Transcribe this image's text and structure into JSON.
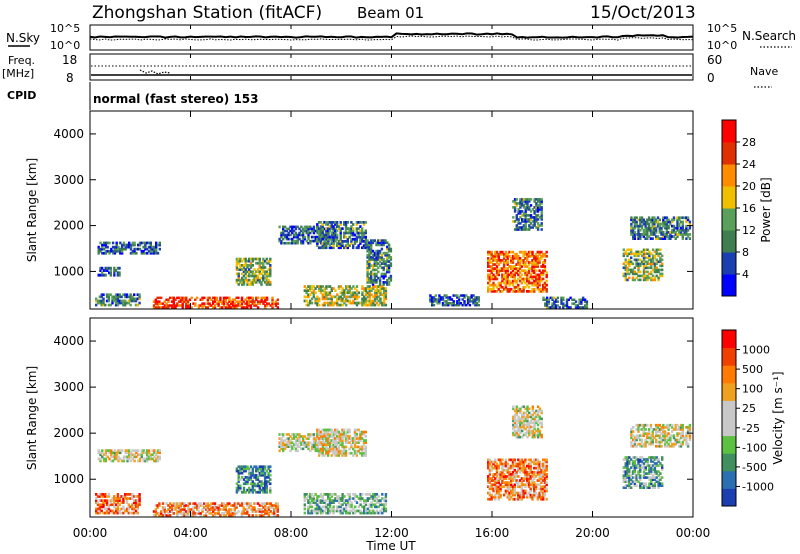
{
  "header": {
    "title": "Zhongshan Station (fitACF)",
    "beam": "Beam 01",
    "date": "15/Oct/2013"
  },
  "top_panels": {
    "nsky_label": "N.Sky",
    "nsky_ticks": [
      "10^5",
      "10^0"
    ],
    "nsearch_label": "N.Search",
    "nsearch_ticks": [
      "10^5",
      "10^0"
    ],
    "freq_label": "Freq.",
    "freq_unit": "[MHz]",
    "freq_ticks": [
      "18",
      "8"
    ],
    "nave_label": "Nave",
    "nave_ticks": [
      "60",
      "0"
    ],
    "cpid_label": "CPID",
    "cpid_value": "normal (fast stereo) 153"
  },
  "chart_data": [
    {
      "type": "heatmap",
      "name": "power",
      "ylabel": "Slant Range [km]",
      "yticks": [
        "4000",
        "3000",
        "2000",
        "1000"
      ],
      "ylim": [
        180,
        4500
      ],
      "xlim_hours": [
        0,
        24
      ],
      "colorbar_label": "Power [dB]",
      "colorbar_ticks": [
        "28",
        "24",
        "20",
        "16",
        "12",
        "8",
        "4"
      ],
      "colors": [
        "#0000ff",
        "#1b3fb0",
        "#3f7f4f",
        "#5aa05a",
        "#f0c000",
        "#ff8c00",
        "#e03000",
        "#ff0000"
      ],
      "echo_regions": [
        {
          "t": [
            0.3,
            2.8
          ],
          "r": [
            1380,
            1650
          ],
          "intensity": 0.25
        },
        {
          "t": [
            0.3,
            1.2
          ],
          "r": [
            900,
            1100
          ],
          "intensity": 0.2
        },
        {
          "t": [
            0.2,
            2.0
          ],
          "r": [
            250,
            520
          ],
          "intensity": 0.3
        },
        {
          "t": [
            2.5,
            7.5
          ],
          "r": [
            200,
            450
          ],
          "intensity": 0.85
        },
        {
          "t": [
            5.8,
            7.2
          ],
          "r": [
            700,
            1300
          ],
          "intensity": 0.45
        },
        {
          "t": [
            7.5,
            9.8
          ],
          "r": [
            1600,
            2000
          ],
          "intensity": 0.25
        },
        {
          "t": [
            9.0,
            11.0
          ],
          "r": [
            1500,
            2100
          ],
          "intensity": 0.3
        },
        {
          "t": [
            8.5,
            11.8
          ],
          "r": [
            250,
            700
          ],
          "intensity": 0.5
        },
        {
          "t": [
            11.0,
            12.0
          ],
          "r": [
            700,
            1700
          ],
          "intensity": 0.3
        },
        {
          "t": [
            13.5,
            15.5
          ],
          "r": [
            250,
            500
          ],
          "intensity": 0.2
        },
        {
          "t": [
            15.8,
            18.2
          ],
          "r": [
            550,
            1450
          ],
          "intensity": 0.75
        },
        {
          "t": [
            16.8,
            18.0
          ],
          "r": [
            1900,
            2600
          ],
          "intensity": 0.3
        },
        {
          "t": [
            18.0,
            19.8
          ],
          "r": [
            200,
            450
          ],
          "intensity": 0.3
        },
        {
          "t": [
            21.2,
            22.8
          ],
          "r": [
            800,
            1500
          ],
          "intensity": 0.45
        },
        {
          "t": [
            21.5,
            23.9
          ],
          "r": [
            1700,
            2200
          ],
          "intensity": 0.3
        }
      ]
    },
    {
      "type": "heatmap",
      "name": "velocity",
      "xlabel": "Time UT",
      "xticks": [
        "00:00",
        "04:00",
        "08:00",
        "12:00",
        "16:00",
        "20:00",
        "00:00"
      ],
      "ylabel": "Slant Range [km]",
      "yticks": [
        "4000",
        "3000",
        "2000",
        "1000"
      ],
      "ylim": [
        180,
        4500
      ],
      "xlim_hours": [
        0,
        24
      ],
      "colorbar_label": "Velocity [m s⁻¹]",
      "colorbar_ticks": [
        "1000",
        "500",
        "100",
        "25",
        "-25",
        "-100",
        "-500",
        "-1000"
      ],
      "colors": [
        "#1b3fb0",
        "#2a6fb0",
        "#3f8f5f",
        "#5cc040",
        "#c8c8c8",
        "#c8c8c8",
        "#f0a020",
        "#ff7a00",
        "#f04000",
        "#ff0000"
      ],
      "echo_regions": [
        {
          "t": [
            0.3,
            2.8
          ],
          "r": [
            1380,
            1650
          ],
          "intensity": 0.5
        },
        {
          "t": [
            0.2,
            2.0
          ],
          "r": [
            250,
            700
          ],
          "intensity": 0.75
        },
        {
          "t": [
            2.5,
            7.5
          ],
          "r": [
            200,
            500
          ],
          "intensity": 0.7
        },
        {
          "t": [
            5.8,
            7.2
          ],
          "r": [
            700,
            1300
          ],
          "intensity": 0.2
        },
        {
          "t": [
            7.5,
            9.8
          ],
          "r": [
            1600,
            2000
          ],
          "intensity": 0.5
        },
        {
          "t": [
            9.0,
            11.0
          ],
          "r": [
            1500,
            2100
          ],
          "intensity": 0.55
        },
        {
          "t": [
            8.5,
            11.8
          ],
          "r": [
            250,
            700
          ],
          "intensity": 0.35
        },
        {
          "t": [
            15.8,
            18.2
          ],
          "r": [
            550,
            1450
          ],
          "intensity": 0.72
        },
        {
          "t": [
            16.8,
            18.0
          ],
          "r": [
            1900,
            2600
          ],
          "intensity": 0.5
        },
        {
          "t": [
            21.2,
            22.8
          ],
          "r": [
            800,
            1500
          ],
          "intensity": 0.3
        },
        {
          "t": [
            21.5,
            23.9
          ],
          "r": [
            1700,
            2200
          ],
          "intensity": 0.5
        }
      ]
    }
  ]
}
